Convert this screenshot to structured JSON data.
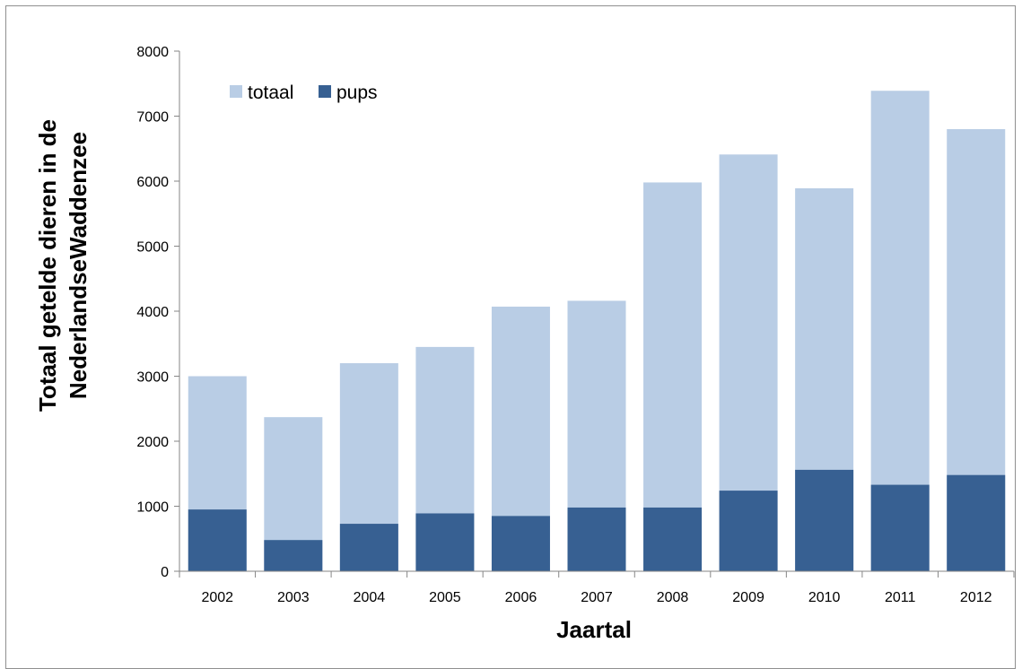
{
  "chart_data": {
    "type": "bar",
    "categories": [
      "2002",
      "2003",
      "2004",
      "2005",
      "2006",
      "2007",
      "2008",
      "2009",
      "2010",
      "2011",
      "2012"
    ],
    "series": [
      {
        "name": "totaal",
        "color": "#b9cde5",
        "values": [
          3000,
          2370,
          3200,
          3450,
          4070,
          4160,
          5980,
          6410,
          5890,
          7390,
          6800
        ]
      },
      {
        "name": "pups",
        "color": "#376092",
        "values": [
          950,
          480,
          730,
          890,
          850,
          980,
          980,
          1240,
          1560,
          1330,
          1480
        ]
      }
    ],
    "title": "",
    "xlabel": "Jaartal",
    "ylabel_line1": "Totaal getelde dieren in de",
    "ylabel_line2": "NederlandseWaddenzee",
    "ylim": [
      0,
      8000
    ],
    "yticks": [
      "0",
      "1000",
      "2000",
      "3000",
      "4000",
      "5000",
      "6000",
      "7000",
      "8000"
    ],
    "grid": false,
    "legend_position": "top-left",
    "axis_color": "#868686"
  }
}
